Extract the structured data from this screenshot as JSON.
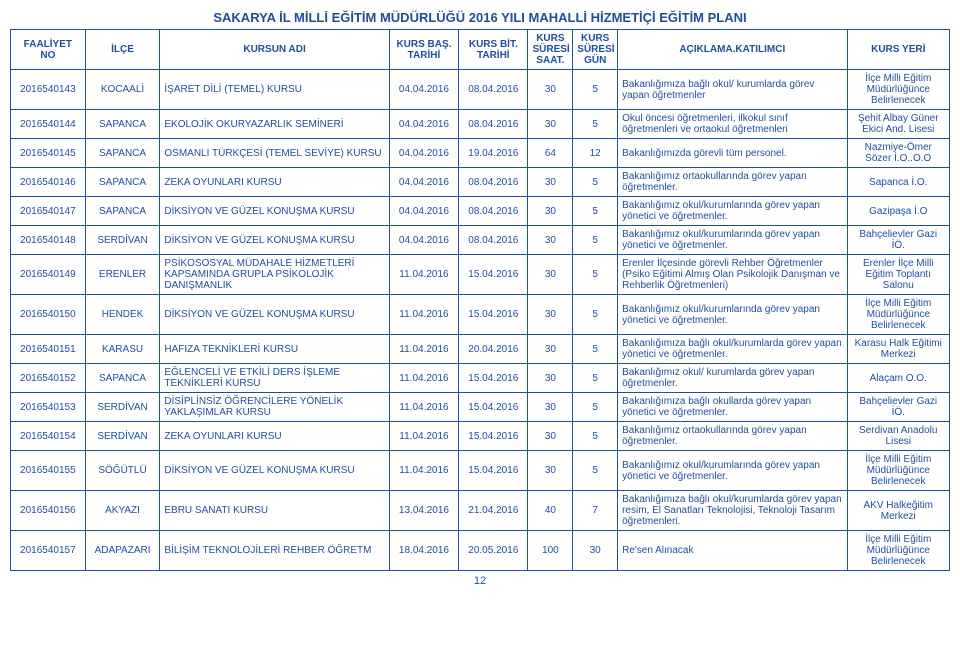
{
  "title": "SAKARYA İL MİLLİ EĞİTİM MÜDÜRLÜĞÜ 2016 YILI MAHALLİ HİZMETİÇİ EĞİTİM PLANI",
  "headers": [
    "FAALİYET NO",
    "İLÇE",
    "KURSUN ADI",
    "KURS BAŞ. TARİHİ",
    "KURS BİT. TARİHİ",
    "KURS SÜRESİ SAAT.",
    "KURS SÜRESİ GÜN",
    "AÇIKLAMA.KATILIMCI",
    "KURS YERİ"
  ],
  "rows": [
    {
      "no": "2016540143",
      "ilce": "KOCAALİ",
      "kurs": "İŞARET DİLİ (TEMEL) KURSU",
      "bas": "04.04.2016",
      "bit": "08.04.2016",
      "saat": "30",
      "gun": "5",
      "aciklama": "Bakanlığımıza bağlı okul/ kurumlarda görev yapan öğretmenler",
      "yer": "İlçe Milli Eğitim Müdürlüğünce Belirlenecek"
    },
    {
      "no": "2016540144",
      "ilce": "SAPANCA",
      "kurs": "EKOLOJİK OKURYAZARLIK SEMİNERİ",
      "bas": "04.04.2016",
      "bit": "08.04.2016",
      "saat": "30",
      "gun": "5",
      "aciklama": "Okul öncesi öğretmenleri, ilkokul sınıf öğretmenleri ve ortaokul öğretmenleri",
      "yer": "Şehit Albay Güner Ekici And. Lisesi"
    },
    {
      "no": "2016540145",
      "ilce": "SAPANCA",
      "kurs": "OSMANLI TÜRKÇESİ (TEMEL SEVİYE) KURSU",
      "bas": "04.04.2016",
      "bit": "19.04.2016",
      "saat": "64",
      "gun": "12",
      "aciklama": "Bakanlığımızda görevli tüm personel.",
      "yer": "Nazmiye-Ömer Sözer İ.O..O.O"
    },
    {
      "no": "2016540146",
      "ilce": "SAPANCA",
      "kurs": "ZEKA OYUNLARI KURSU",
      "bas": "04.04.2016",
      "bit": "08.04.2016",
      "saat": "30",
      "gun": "5",
      "aciklama": "Bakanlığımız ortaokullarında görev yapan öğretmenler.",
      "yer": "Sapanca İ.O."
    },
    {
      "no": "2016540147",
      "ilce": "SAPANCA",
      "kurs": "DİKSİYON VE GÜZEL KONUŞMA KURSU",
      "bas": "04.04.2016",
      "bit": "08.04.2016",
      "saat": "30",
      "gun": "5",
      "aciklama": "Bakanlığımız okul/kurumlarında görev yapan yönetici ve öğretmenler.",
      "yer": "Gazipaşa İ.O"
    },
    {
      "no": "2016540148",
      "ilce": "SERDİVAN",
      "kurs": "DİKSİYON VE GÜZEL KONUŞMA KURSU",
      "bas": "04.04.2016",
      "bit": "08.04.2016",
      "saat": "30",
      "gun": "5",
      "aciklama": "Bakanlığımız okul/kurumlarında görev yapan yönetici ve öğretmenler.",
      "yer": "Bahçelievler Gazi İÖ."
    },
    {
      "no": "2016540149",
      "ilce": "ERENLER",
      "kurs": "PSİKOSOSYAL MÜDAHALE HİZMETLERİ KAPSAMINDA GRUPLA PSİKOLOJİK DANIŞMANLIK",
      "bas": "11.04.2016",
      "bit": "15.04.2016",
      "saat": "30",
      "gun": "5",
      "aciklama": "Erenler İlçesinde görevli Rehber Öğretmenler (Psiko Eğitimi Almış Olan Psikolojik Danışman ve Rehberlik Öğretmenleri)",
      "yer": "Erenler İlçe Milli Eğitim Toplantı Salonu"
    },
    {
      "no": "2016540150",
      "ilce": "HENDEK",
      "kurs": "DİKSİYON VE GÜZEL KONUŞMA KURSU",
      "bas": "11.04.2016",
      "bit": "15.04.2016",
      "saat": "30",
      "gun": "5",
      "aciklama": "Bakanlığımız okul/kurumlarında görev yapan yönetici ve öğretmenler.",
      "yer": "İlçe Milli Eğitim Müdürlüğünce Belirlenecek"
    },
    {
      "no": "2016540151",
      "ilce": "KARASU",
      "kurs": "HAFIZA TEKNİKLERİ KURSU",
      "bas": "11.04.2016",
      "bit": "20.04.2016",
      "saat": "30",
      "gun": "5",
      "aciklama": "Bakanlığımıza bağlı okul/kurumlarda görev yapan yönetici ve öğretmenler.",
      "yer": "Karasu Halk Eğitimi Merkezi"
    },
    {
      "no": "2016540152",
      "ilce": "SAPANCA",
      "kurs": "EĞLENCELİ VE ETKİLİ DERS İŞLEME TEKNİKLERİ KURSU",
      "bas": "11.04.2016",
      "bit": "15.04.2016",
      "saat": "30",
      "gun": "5",
      "aciklama": "Bakanlığımız okul/ kurumlarda görev yapan öğretmenler.",
      "yer": "Alaçam O.O."
    },
    {
      "no": "2016540153",
      "ilce": "SERDİVAN",
      "kurs": "DİSİPLİNSİZ ÖĞRENCİLERE YÖNELİK YAKLAŞIMLAR KURSU",
      "bas": "11.04.2016",
      "bit": "15.04.2016",
      "saat": "30",
      "gun": "5",
      "aciklama": "Bakanlığımıza bağlı okullarda görev yapan yönetici ve öğretmenler.",
      "yer": "Bahçelievler Gazi İÖ."
    },
    {
      "no": "2016540154",
      "ilce": "SERDİVAN",
      "kurs": "ZEKA OYUNLARI KURSU",
      "bas": "11.04.2016",
      "bit": "15.04.2016",
      "saat": "30",
      "gun": "5",
      "aciklama": "Bakanlığımız ortaokullarında görev yapan öğretmenler.",
      "yer": "Serdivan Anadolu Lisesi"
    },
    {
      "no": "2016540155",
      "ilce": "SÖĞÜTLÜ",
      "kurs": "DİKSİYON VE GÜZEL KONUŞMA KURSU",
      "bas": "11.04.2016",
      "bit": "15.04.2016",
      "saat": "30",
      "gun": "5",
      "aciklama": "Bakanlığımız okul/kurumlarında görev yapan yönetici ve öğretmenler.",
      "yer": "İlçe Milli Eğitim Müdürlüğünce Belirlenecek"
    },
    {
      "no": "2016540156",
      "ilce": "AKYAZI",
      "kurs": "EBRU SANATI KURSU",
      "bas": "13.04.2016",
      "bit": "21.04.2016",
      "saat": "40",
      "gun": "7",
      "aciklama": "Bakanlığımıza bağlı okul/kurumlarda görev yapan resim,  El Sanatları Teknolojisi, Teknoloji Tasarım öğretmenleri.",
      "yer": "AKV Halkeğitim Merkezi"
    },
    {
      "no": "2016540157",
      "ilce": "ADAPAZARI",
      "kurs": "BİLİŞİM TEKNOLOJİLERİ REHBER ÖĞRETM",
      "bas": "18.04.2016",
      "bit": "20.05.2016",
      "saat": "100",
      "gun": "30",
      "aciklama": "Re'sen Alınacak",
      "yer": "İlçe Milli Eğitim Müdürlüğünce Belirlenecek"
    }
  ],
  "pagenum": "12"
}
